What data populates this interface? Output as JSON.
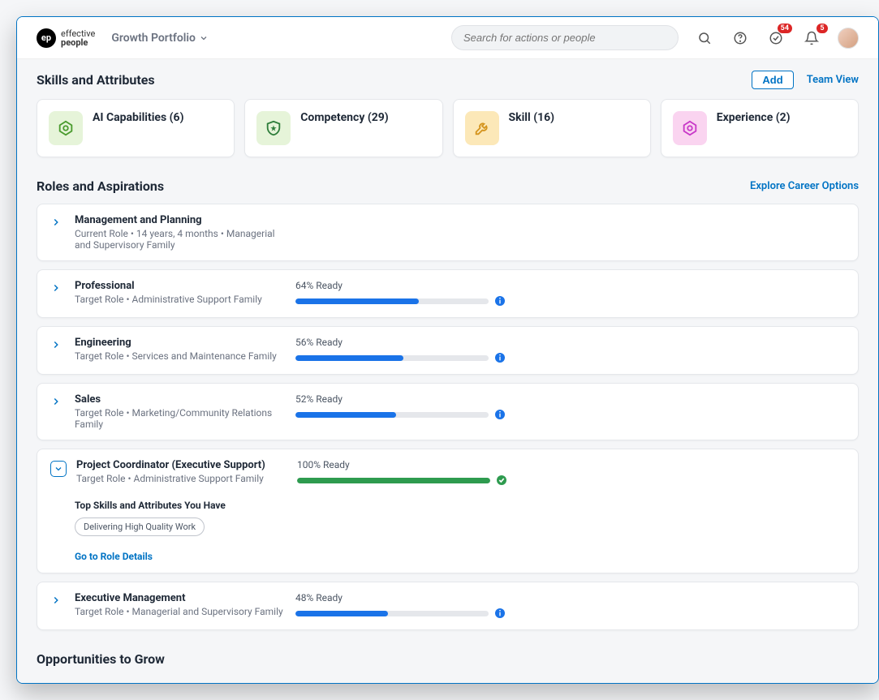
{
  "brand": {
    "mark": "ep",
    "line1": "effective",
    "line2": "people"
  },
  "nav": {
    "dropdown": "Growth Portfolio"
  },
  "search": {
    "placeholder": "Search for actions or people"
  },
  "notifications": {
    "approvals": "54",
    "alerts": "5"
  },
  "skills_section": {
    "title": "Skills and Attributes",
    "add_label": "Add",
    "team_view_label": "Team View",
    "cards": [
      {
        "label": "AI Capabilities (6)",
        "icon_bg": "#e6f4d9",
        "icon_color": "#4a9b2e"
      },
      {
        "label": "Competency (29)",
        "icon_bg": "#e6f4d9",
        "icon_color": "#2e7d3a"
      },
      {
        "label": "Skill (16)",
        "icon_bg": "#fce8b8",
        "icon_color": "#d4941e"
      },
      {
        "label": "Experience (2)",
        "icon_bg": "#fad4f0",
        "icon_color": "#c838c8"
      }
    ]
  },
  "roles_section": {
    "title": "Roles and Aspirations",
    "explore_label": "Explore Career Options",
    "roles": [
      {
        "name": "Management and Planning",
        "sub": "Current Role • 14 years, 4 months • Managerial and Supervisory Family",
        "expanded": false
      },
      {
        "name": "Professional",
        "sub": "Target Role • Administrative Support Family",
        "percent": 64,
        "ready_label": "64% Ready",
        "color": "#1a73e8",
        "expanded": false
      },
      {
        "name": "Engineering",
        "sub": "Target Role • Services and Maintenance Family",
        "percent": 56,
        "ready_label": "56% Ready",
        "color": "#1a73e8",
        "expanded": false
      },
      {
        "name": "Sales",
        "sub": "Target Role • Marketing/Community Relations Family",
        "percent": 52,
        "ready_label": "52% Ready",
        "color": "#1a73e8",
        "expanded": false
      },
      {
        "name": "Project Coordinator (Executive Support)",
        "sub": "Target Role • Administrative Support Family",
        "percent": 100,
        "ready_label": "100% Ready",
        "color": "#2e9b4f",
        "expanded": true,
        "top_skills_title": "Top Skills and Attributes You Have",
        "skill_chip": "Delivering High Quality Work",
        "details_link": "Go to Role Details"
      },
      {
        "name": "Executive Management",
        "sub": "Target Role • Managerial and Supervisory Family",
        "percent": 48,
        "ready_label": "48% Ready",
        "color": "#1a73e8",
        "expanded": false
      }
    ]
  },
  "opportunities": {
    "title": "Opportunities to Grow"
  }
}
